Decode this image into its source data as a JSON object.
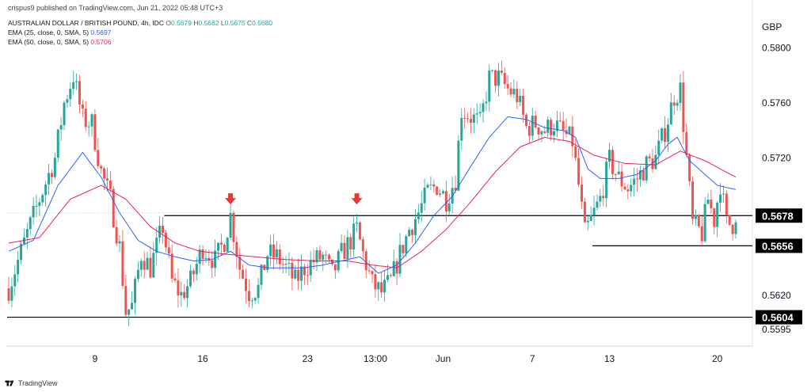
{
  "publisher": "crispus9 published on TradingView.com, Jun 21, 2022 05:48 UTC+3",
  "symbol_line": {
    "name": "AUSTRALIAN DOLLAR / BRITISH POUND, 4h, IDC",
    "o_label": "O",
    "o": "0.5679",
    "h_label": "H",
    "h": "0.5682",
    "l_label": "L",
    "l": "0.5675",
    "c_label": "C",
    "c": "0.5680"
  },
  "ema1": {
    "label": "EMA (25, close, 0, SMA, 5)",
    "value": "0.5697",
    "color": "#2962ff"
  },
  "ema2": {
    "label": "EMA (50, close, 0, SMA, 5)",
    "value": "0.5706",
    "color": "#e91e63"
  },
  "footer": {
    "brand": "TradingView"
  },
  "colors": {
    "up": "#26a69a",
    "down": "#ef5350",
    "arrow": "#e53935",
    "line": "#000000"
  },
  "chart_data": {
    "type": "candlestick",
    "currency": "GBP",
    "ylim": [
      0.5583,
      0.5835
    ],
    "price_ticks": [
      "0.5800",
      "0.5760",
      "0.5720",
      "0.5620",
      "0.5595"
    ],
    "x_ticks": [
      {
        "label": "9",
        "i": 28
      },
      {
        "label": "16",
        "i": 63
      },
      {
        "label": "23",
        "i": 97
      },
      {
        "label": "13:00",
        "i": 119
      },
      {
        "label": "Jun",
        "i": 141
      },
      {
        "label": "7",
        "i": 170
      },
      {
        "label": "13",
        "i": 195
      },
      {
        "label": "20",
        "i": 230
      }
    ],
    "levels": [
      {
        "label": "0.5678",
        "value": 0.5678,
        "start_i": 51
      },
      {
        "label": "0.5656",
        "value": 0.5656,
        "start_i": 190
      },
      {
        "label": "0.5604",
        "value": 0.5604,
        "start_i": 0
      }
    ],
    "markers": [
      {
        "i": 72,
        "value": 0.5685
      },
      {
        "i": 113,
        "value": 0.5685
      }
    ],
    "anchors": [
      [
        0,
        0.5625
      ],
      [
        6,
        0.5665
      ],
      [
        10,
        0.569
      ],
      [
        15,
        0.572
      ],
      [
        18,
        0.576
      ],
      [
        21,
        0.578
      ],
      [
        24,
        0.5748
      ],
      [
        27,
        0.5745
      ],
      [
        30,
        0.571
      ],
      [
        33,
        0.569
      ],
      [
        36,
        0.5655
      ],
      [
        38,
        0.5608
      ],
      [
        40,
        0.5612
      ],
      [
        43,
        0.565
      ],
      [
        46,
        0.564
      ],
      [
        50,
        0.567
      ],
      [
        53,
        0.563
      ],
      [
        56,
        0.562
      ],
      [
        59,
        0.563
      ],
      [
        63,
        0.5655
      ],
      [
        67,
        0.5645
      ],
      [
        70,
        0.566
      ],
      [
        72,
        0.5678
      ],
      [
        75,
        0.564
      ],
      [
        78,
        0.5622
      ],
      [
        81,
        0.5625
      ],
      [
        84,
        0.565
      ],
      [
        87,
        0.5648
      ],
      [
        90,
        0.564
      ],
      [
        93,
        0.563
      ],
      [
        96,
        0.564
      ],
      [
        99,
        0.5645
      ],
      [
        102,
        0.5648
      ],
      [
        105,
        0.5635
      ],
      [
        108,
        0.565
      ],
      [
        111,
        0.566
      ],
      [
        113,
        0.5668
      ],
      [
        115,
        0.565
      ],
      [
        118,
        0.5628
      ],
      [
        121,
        0.5622
      ],
      [
        124,
        0.563
      ],
      [
        127,
        0.565
      ],
      [
        130,
        0.5668
      ],
      [
        133,
        0.568
      ],
      [
        136,
        0.5695
      ],
      [
        139,
        0.57
      ],
      [
        142,
        0.569
      ],
      [
        145,
        0.5705
      ],
      [
        147,
        0.5755
      ],
      [
        150,
        0.575
      ],
      [
        153,
        0.5745
      ],
      [
        156,
        0.5778
      ],
      [
        159,
        0.5778
      ],
      [
        162,
        0.577
      ],
      [
        165,
        0.5765
      ],
      [
        168,
        0.5742
      ],
      [
        171,
        0.5745
      ],
      [
        174,
        0.574
      ],
      [
        177,
        0.5745
      ],
      [
        180,
        0.5738
      ],
      [
        183,
        0.5732
      ],
      [
        185,
        0.57
      ],
      [
        187,
        0.5665
      ],
      [
        189,
        0.5675
      ],
      [
        192,
        0.569
      ],
      [
        195,
        0.5718
      ],
      [
        198,
        0.5705
      ],
      [
        201,
        0.5698
      ],
      [
        204,
        0.5705
      ],
      [
        207,
        0.5715
      ],
      [
        210,
        0.572
      ],
      [
        213,
        0.574
      ],
      [
        216,
        0.5765
      ],
      [
        218,
        0.577
      ],
      [
        220,
        0.572
      ],
      [
        222,
        0.5672
      ],
      [
        225,
        0.5665
      ],
      [
        227,
        0.569
      ],
      [
        229,
        0.5675
      ],
      [
        231,
        0.5702
      ],
      [
        233,
        0.5672
      ],
      [
        235,
        0.5672
      ],
      [
        236,
        0.568
      ]
    ],
    "ema25_anchors": [
      [
        0,
        0.5652
      ],
      [
        8,
        0.566
      ],
      [
        16,
        0.57
      ],
      [
        24,
        0.5724
      ],
      [
        30,
        0.5706
      ],
      [
        36,
        0.568
      ],
      [
        42,
        0.566
      ],
      [
        48,
        0.5652
      ],
      [
        54,
        0.5648
      ],
      [
        60,
        0.5645
      ],
      [
        66,
        0.5646
      ],
      [
        72,
        0.5652
      ],
      [
        78,
        0.5642
      ],
      [
        84,
        0.564
      ],
      [
        90,
        0.564
      ],
      [
        96,
        0.564
      ],
      [
        102,
        0.5642
      ],
      [
        108,
        0.5645
      ],
      [
        114,
        0.5648
      ],
      [
        120,
        0.5636
      ],
      [
        126,
        0.5642
      ],
      [
        132,
        0.5658
      ],
      [
        138,
        0.5678
      ],
      [
        144,
        0.5692
      ],
      [
        150,
        0.5714
      ],
      [
        156,
        0.5735
      ],
      [
        162,
        0.575
      ],
      [
        168,
        0.5748
      ],
      [
        174,
        0.5742
      ],
      [
        180,
        0.574
      ],
      [
        184,
        0.5735
      ],
      [
        188,
        0.5712
      ],
      [
        192,
        0.5705
      ],
      [
        198,
        0.5705
      ],
      [
        204,
        0.5708
      ],
      [
        210,
        0.5718
      ],
      [
        214,
        0.573
      ],
      [
        217,
        0.5735
      ],
      [
        221,
        0.5718
      ],
      [
        225,
        0.571
      ],
      [
        230,
        0.57
      ],
      [
        236,
        0.5697
      ]
    ],
    "ema50_anchors": [
      [
        0,
        0.5658
      ],
      [
        10,
        0.5662
      ],
      [
        20,
        0.569
      ],
      [
        30,
        0.57
      ],
      [
        38,
        0.569
      ],
      [
        46,
        0.567
      ],
      [
        54,
        0.5658
      ],
      [
        62,
        0.5652
      ],
      [
        70,
        0.565
      ],
      [
        80,
        0.5648
      ],
      [
        90,
        0.5646
      ],
      [
        100,
        0.5645
      ],
      [
        110,
        0.5645
      ],
      [
        118,
        0.5642
      ],
      [
        126,
        0.564
      ],
      [
        134,
        0.5652
      ],
      [
        142,
        0.5668
      ],
      [
        150,
        0.5688
      ],
      [
        158,
        0.571
      ],
      [
        166,
        0.5728
      ],
      [
        174,
        0.5735
      ],
      [
        182,
        0.5732
      ],
      [
        190,
        0.5722
      ],
      [
        200,
        0.5716
      ],
      [
        210,
        0.5715
      ],
      [
        218,
        0.5725
      ],
      [
        226,
        0.5718
      ],
      [
        236,
        0.5706
      ]
    ]
  }
}
